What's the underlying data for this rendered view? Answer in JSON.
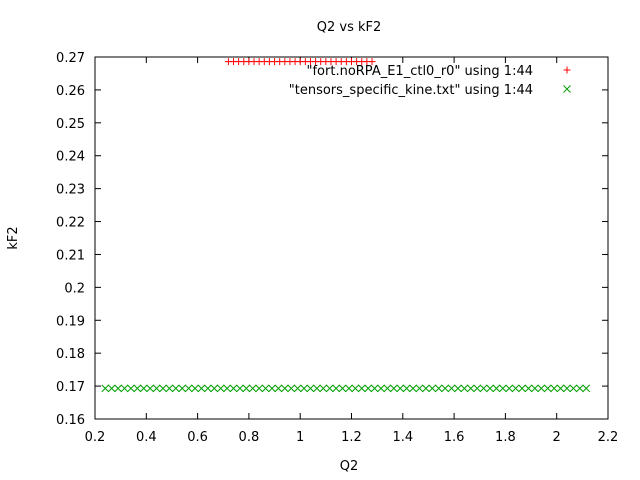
{
  "chart_data": {
    "type": "scatter",
    "title": "Q2 vs kF2",
    "xlabel": "Q2",
    "ylabel": "kF2",
    "xlim": [
      0.2,
      2.2
    ],
    "ylim": [
      0.16,
      0.27
    ],
    "x_ticks": [
      "0.2",
      "0.4",
      "0.6",
      "0.8",
      "1",
      "1.2",
      "1.4",
      "1.6",
      "1.8",
      "2",
      "2.2"
    ],
    "y_ticks": [
      "0.16",
      "0.17",
      "0.18",
      "0.19",
      "0.2",
      "0.21",
      "0.22",
      "0.23",
      "0.24",
      "0.25",
      "0.26",
      "0.27"
    ],
    "grid": false,
    "legend_position": "top-right",
    "series": [
      {
        "name": "\"fort.noRPA_E1_ctl0_r0\" using 1:44",
        "marker": "plus",
        "color": "#ff0000",
        "x_start": 0.72,
        "x_end": 1.28,
        "x_step": 0.02,
        "y": 0.2686
      },
      {
        "name": "\"tensors_specific_kine.txt\" using 1:44",
        "marker": "cross",
        "color": "#00a000",
        "x_start": 0.24,
        "x_end": 2.13,
        "x_step": 0.025,
        "y": 0.1693
      }
    ]
  }
}
